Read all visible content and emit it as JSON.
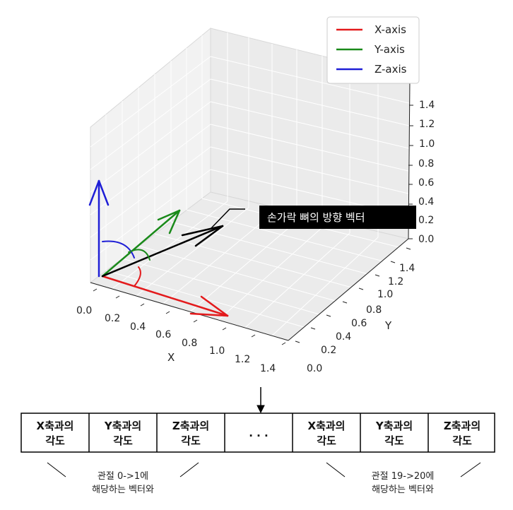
{
  "plot": {
    "legend": [
      {
        "label": "X-axis",
        "color": "#e31a1c"
      },
      {
        "label": "Y-axis",
        "color": "#1a8a1a"
      },
      {
        "label": "Z-axis",
        "color": "#1f1fd6"
      }
    ],
    "x_axis": {
      "label": "X",
      "ticks": [
        "0.0",
        "0.2",
        "0.4",
        "0.6",
        "0.8",
        "1.0",
        "1.2",
        "1.4"
      ]
    },
    "y_axis": {
      "label": "Y",
      "ticks": [
        "0.0",
        "0.2",
        "0.4",
        "0.6",
        "0.8",
        "1.0",
        "1.2",
        "1.4"
      ]
    },
    "z_axis": {
      "ticks": [
        "0.0",
        "0.2",
        "0.4",
        "0.6",
        "0.8",
        "1.0",
        "1.2",
        "1.4"
      ]
    },
    "vector_color": "#000000",
    "callout": "손가락 뼈의 방향 벡터"
  },
  "table": {
    "cells": [
      {
        "line1": "X축과의",
        "line2": "각도"
      },
      {
        "line1": "Y축과의",
        "line2": "각도"
      },
      {
        "line1": "Z축과의",
        "line2": "각도"
      },
      {
        "line1": ". . .",
        "line2": ""
      },
      {
        "line1": "X축과의",
        "line2": "각도"
      },
      {
        "line1": "Y축과의",
        "line2": "각도"
      },
      {
        "line1": "Z축과의",
        "line2": "각도"
      }
    ]
  },
  "notes": {
    "left": {
      "line1": "관절 0->1에",
      "line2": "해당하는 벡터와"
    },
    "right": {
      "line1": "관절 19->20에",
      "line2": "해당하는 벡터와"
    }
  }
}
